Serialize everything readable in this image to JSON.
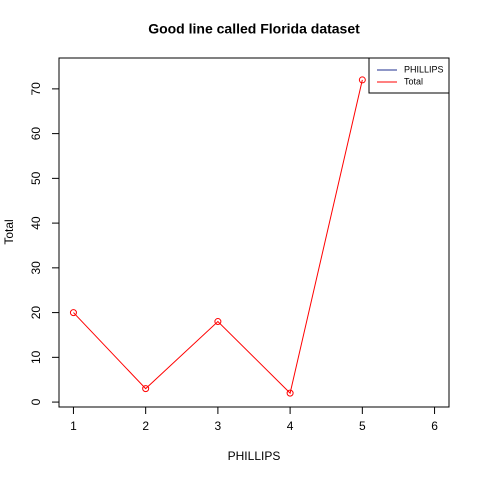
{
  "chart_data": {
    "type": "line",
    "title": "Good line called Florida dataset",
    "x_label": "PHILLIPS",
    "y_label": "Total",
    "x": [
      1,
      2,
      3,
      4,
      5
    ],
    "series": [
      {
        "name": "Total",
        "color": "#ff0000",
        "values": [
          20,
          3,
          18,
          2,
          72
        ]
      }
    ],
    "legend": {
      "position": "topright",
      "entries": [
        {
          "name": "PHILLIPS",
          "color": "#1f2f8f"
        },
        {
          "name": "Total",
          "color": "#ff0000"
        }
      ]
    },
    "xlim": [
      0.8,
      6.2
    ],
    "xticks": [
      1,
      2,
      3,
      4,
      5,
      6
    ],
    "ylim": [
      -1.1,
      76.9
    ],
    "yticks": [
      0,
      10,
      20,
      30,
      40,
      50,
      60,
      70
    ]
  }
}
